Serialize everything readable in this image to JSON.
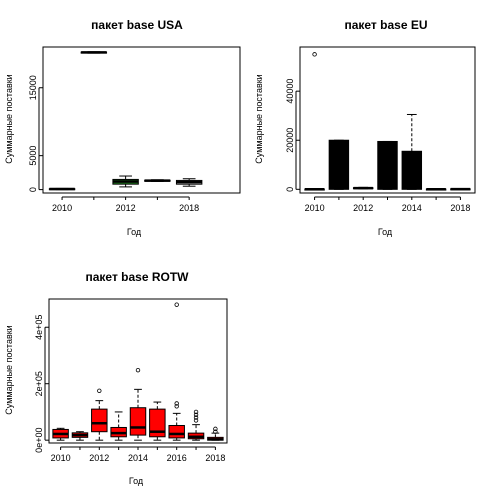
{
  "chart_data": [
    {
      "type": "boxplot",
      "title": "пакет base USA",
      "xlabel": "Год",
      "ylabel": "Суммарные поставки",
      "x_ticks": [
        "2010",
        "2012",
        "2018"
      ],
      "y_ticks": [
        "0",
        "5000",
        "15000"
      ],
      "y_tick_values": [
        0,
        5000,
        15000
      ],
      "ylim": [
        -500,
        21000
      ],
      "x_range": [
        0.4,
        6.6
      ],
      "boxes": [
        {
          "x": 1,
          "year": "2010",
          "fill": "#ffffff",
          "min": 0,
          "q1": 30,
          "median": 80,
          "q3": 130,
          "max": 170,
          "outliers": []
        },
        {
          "x": 2,
          "year": "2011",
          "fill": "#ffffff",
          "min": 20100,
          "q1": 20150,
          "median": 20200,
          "q3": 20250,
          "max": 20300,
          "outliers": []
        },
        {
          "x": 3,
          "year": "2012",
          "fill": "#1e7b1e",
          "min": 400,
          "q1": 800,
          "median": 1200,
          "q3": 1500,
          "max": 2000,
          "outliers": []
        },
        {
          "x": 4,
          "year": "2014",
          "fill": "#ffffff",
          "min": 1200,
          "q1": 1270,
          "median": 1320,
          "q3": 1380,
          "max": 1450,
          "outliers": []
        },
        {
          "x": 5,
          "year": "2018",
          "fill": "#ffffff",
          "min": 500,
          "q1": 800,
          "median": 1100,
          "q3": 1350,
          "max": 1600,
          "outliers": []
        }
      ]
    },
    {
      "type": "boxplot",
      "title": "пакет base EU",
      "xlabel": "Год",
      "ylabel": "Суммарные поставки",
      "x_ticks": [
        "2010",
        "2012",
        "2014",
        "2018"
      ],
      "y_ticks": [
        "0",
        "20000",
        "40000"
      ],
      "y_tick_values": [
        0,
        20000,
        40000
      ],
      "ylim": [
        -1500,
        58000
      ],
      "x_range": [
        0.4,
        7.6
      ],
      "boxes": [
        {
          "x": 1,
          "year": "2010",
          "fill": "#000000",
          "min": 0,
          "q1": 0,
          "median": 50,
          "q3": 100,
          "max": 150,
          "outliers": [
            55000
          ]
        },
        {
          "x": 2,
          "year": "2011",
          "fill": "#000000",
          "min": 0,
          "q1": 0,
          "median": 10000,
          "q3": 20000,
          "max": 20000,
          "outliers": []
        },
        {
          "x": 3,
          "year": "2012",
          "fill": "#000000",
          "min": 200,
          "q1": 350,
          "median": 500,
          "q3": 650,
          "max": 800,
          "outliers": []
        },
        {
          "x": 4,
          "year": "2013",
          "fill": "#000000",
          "min": 0,
          "q1": 0,
          "median": 10000,
          "q3": 19500,
          "max": 19500,
          "outliers": []
        },
        {
          "x": 5,
          "year": "2014",
          "fill": "#000000",
          "min": 0,
          "q1": 0,
          "median": 8000,
          "q3": 15500,
          "max": 30500,
          "outliers": []
        },
        {
          "x": 6,
          "year": "2015",
          "fill": "#000000",
          "min": 0,
          "q1": 0,
          "median": 50,
          "q3": 100,
          "max": 200,
          "outliers": []
        },
        {
          "x": 7,
          "year": "2018",
          "fill": "#000000",
          "min": 0,
          "q1": 50,
          "median": 100,
          "q3": 200,
          "max": 300,
          "outliers": []
        }
      ]
    },
    {
      "type": "boxplot",
      "title": "пакет base ROTW",
      "xlabel": "Год",
      "ylabel": "Суммарные поставки",
      "x_ticks": [
        "2010",
        "2012",
        "2014",
        "2016",
        "2018"
      ],
      "y_ticks": [
        "0e+00",
        "2e+05",
        "4e+05"
      ],
      "y_tick_values": [
        0,
        200000,
        400000
      ],
      "ylim": [
        -10000,
        500000
      ],
      "x_range": [
        0.4,
        9.6
      ],
      "boxes": [
        {
          "x": 1,
          "year": "2010",
          "fill": "#ff0000",
          "min": 0,
          "q1": 8000,
          "median": 22000,
          "q3": 38000,
          "max": 42000,
          "outliers": []
        },
        {
          "x": 2,
          "year": "2011",
          "fill": "#ff0000",
          "min": 0,
          "q1": 10000,
          "median": 18000,
          "q3": 26000,
          "max": 30000,
          "outliers": []
        },
        {
          "x": 3,
          "year": "2012",
          "fill": "#ff0000",
          "min": 0,
          "q1": 30000,
          "median": 60000,
          "q3": 110000,
          "max": 140000,
          "outliers": [
            175000
          ]
        },
        {
          "x": 4,
          "year": "2013",
          "fill": "#ff0000",
          "min": 0,
          "q1": 12000,
          "median": 25000,
          "q3": 45000,
          "max": 100000,
          "outliers": []
        },
        {
          "x": 5,
          "year": "2014",
          "fill": "#ff0000",
          "min": 0,
          "q1": 18000,
          "median": 45000,
          "q3": 115000,
          "max": 180000,
          "outliers": [
            248000
          ]
        },
        {
          "x": 6,
          "year": "2015",
          "fill": "#ff0000",
          "min": 0,
          "q1": 12000,
          "median": 30000,
          "q3": 110000,
          "max": 135000,
          "outliers": []
        },
        {
          "x": 7,
          "year": "2016",
          "fill": "#ff0000",
          "min": 0,
          "q1": 8000,
          "median": 22000,
          "q3": 52000,
          "max": 95000,
          "outliers": [
            120000,
            130000,
            480000
          ]
        },
        {
          "x": 8,
          "year": "2017",
          "fill": "#ff0000",
          "min": 0,
          "q1": 5000,
          "median": 12000,
          "q3": 25000,
          "max": 55000,
          "outliers": [
            70000,
            80000,
            90000,
            100000
          ]
        },
        {
          "x": 9,
          "year": "2018",
          "fill": "#ff0000",
          "min": 0,
          "q1": 0,
          "median": 3000,
          "q3": 10000,
          "max": 25000,
          "outliers": [
            30000,
            40000
          ]
        }
      ]
    }
  ]
}
